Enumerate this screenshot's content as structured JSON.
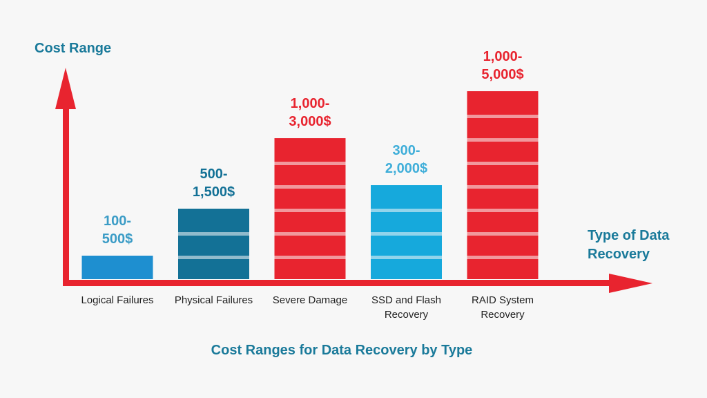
{
  "chart_data": {
    "type": "bar",
    "title": "Cost Ranges for Data Recovery by Type",
    "ylabel": "Cost Range",
    "xlabel": "Type of Data Recovery",
    "categories": [
      "Logical Failures",
      "Physical Failures",
      "Severe Damage",
      "SSD and Flash Recovery",
      "RAID System Recovery"
    ],
    "category_lines": [
      [
        "Logical Failures"
      ],
      [
        "Physical Failures"
      ],
      [
        "Severe Damage"
      ],
      [
        "SSD and Flash",
        "Recovery"
      ],
      [
        "RAID System",
        "Recovery"
      ]
    ],
    "ranges": [
      {
        "min": 100,
        "max": 500
      },
      {
        "min": 500,
        "max": 1500
      },
      {
        "min": 1000,
        "max": 3000
      },
      {
        "min": 300,
        "max": 2000
      },
      {
        "min": 1000,
        "max": 5000
      }
    ],
    "value_labels": [
      [
        "100-",
        "500$"
      ],
      [
        "500-",
        "1,500$"
      ],
      [
        "1,000-",
        "3,000$"
      ],
      [
        "300-",
        "2,000$"
      ],
      [
        "1,000-",
        "5,000$"
      ]
    ],
    "bar_segments": [
      1,
      3,
      6,
      4,
      8
    ],
    "colors": [
      "#1e8fd0",
      "#137196",
      "#e8242f",
      "#16a9dc",
      "#e8242f"
    ],
    "label_colors": [
      "#3b9cc6",
      "#137196",
      "#e8242f",
      "#3faed9",
      "#e8242f"
    ],
    "axis_color": "#e8242f",
    "title_color": "#1a7a9a",
    "grid": false,
    "legend": "none"
  }
}
